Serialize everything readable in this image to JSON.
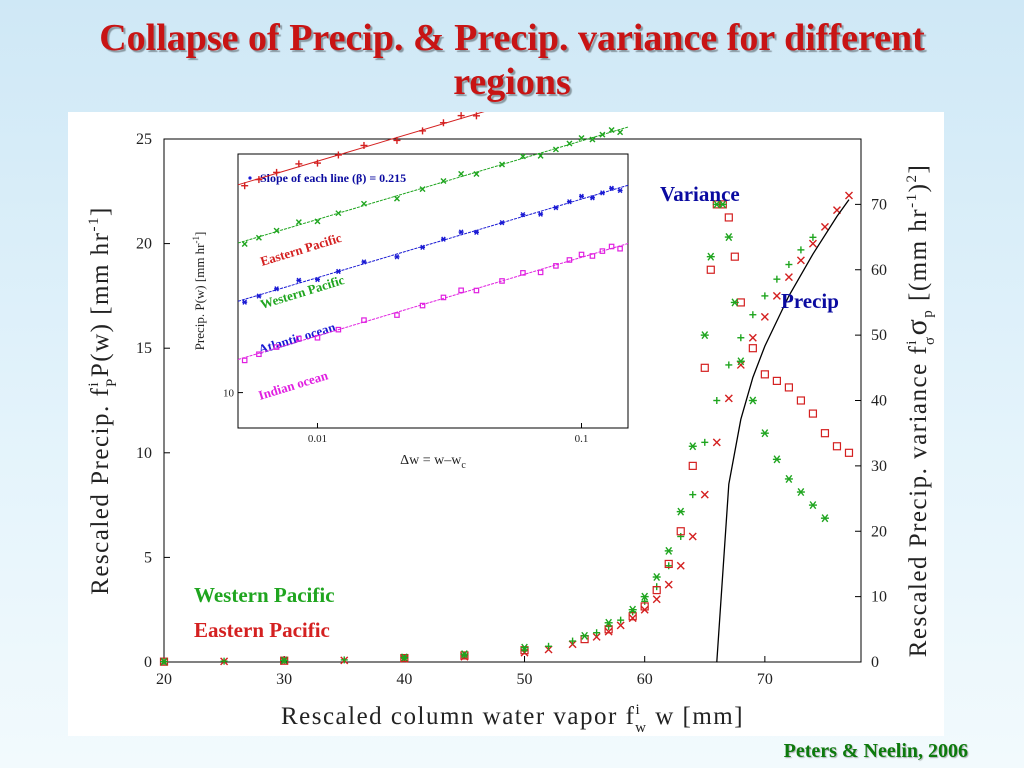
{
  "slide": {
    "title_line1": "Collapse of Precip. & Precip. variance for different",
    "title_line2": "regions",
    "credit": "Peters & Neelin, 2006"
  },
  "chart_data": [
    {
      "type": "scatter",
      "id": "main",
      "xlabel": "Rescaled column water vapor f",
      "xlabel_sup": "i",
      "xlabel_sub": "w",
      "xlabel_tail": " w [mm]",
      "ylabel_left": "Rescaled Precip. f",
      "ylabel_left_sup": "i",
      "ylabel_left_sub": "P",
      "ylabel_left_tail": "P(w) [mm hr",
      "ylabel_left_exp": "-1",
      "ylabel_left_end": "]",
      "ylabel_right": "Rescaled Precip. variance f",
      "ylabel_right_sup": "i",
      "ylabel_right_sub": "σ",
      "ylabel_right_sigma": "σ",
      "ylabel_right_sigma_sub": "p",
      "ylabel_right_tail": " [(mm hr",
      "ylabel_right_exp": "-1",
      "ylabel_right_mid": ")",
      "ylabel_right_exp2": "2",
      "ylabel_right_end": "]",
      "xlim": [
        20,
        78
      ],
      "ylim_left": [
        0,
        25
      ],
      "ylim_right": [
        0,
        80
      ],
      "x_ticks": [
        "20",
        "30",
        "40",
        "50",
        "60",
        "70"
      ],
      "y_ticks_left": [
        "0",
        "5",
        "10",
        "15",
        "20",
        "25"
      ],
      "y_ticks_right": [
        "0",
        "10",
        "20",
        "30",
        "40",
        "50",
        "60",
        "70"
      ],
      "annotations": {
        "variance": "Variance",
        "precip": "Precip",
        "legend_western": "Western Pacific",
        "legend_eastern": "Eastern Pacific"
      },
      "colors": {
        "eastern": "#d42020",
        "western": "#1fa51f",
        "fit": "#000000",
        "annot": "#0a0aa0"
      },
      "precip_x": [
        20,
        25,
        30,
        35,
        40,
        45,
        50,
        52,
        54,
        56,
        57,
        58,
        59,
        60,
        61,
        62,
        63,
        64,
        65,
        66,
        67,
        68,
        69,
        70,
        71,
        72,
        73,
        74,
        75,
        76,
        77
      ],
      "precip_eastern": [
        0.02,
        0.03,
        0.05,
        0.08,
        0.15,
        0.25,
        0.45,
        0.6,
        0.85,
        1.2,
        1.45,
        1.75,
        2.1,
        2.5,
        3.0,
        3.7,
        4.6,
        6.0,
        8.0,
        10.5,
        12.6,
        14.2,
        15.5,
        16.5,
        17.5,
        18.4,
        19.2,
        20.0,
        20.8,
        21.6,
        22.3
      ],
      "precip_western": [
        0.02,
        0.04,
        0.06,
        0.1,
        0.18,
        0.3,
        0.55,
        0.75,
        1.0,
        1.4,
        1.7,
        2.0,
        2.4,
        2.9,
        3.6,
        4.6,
        6.0,
        8.0,
        10.5,
        12.5,
        14.2,
        15.5,
        16.6,
        17.5,
        18.3,
        19.0,
        19.7,
        20.3
      ],
      "variance_x": [
        20,
        30,
        40,
        45,
        50,
        55,
        57,
        59,
        60,
        61,
        62,
        63,
        64,
        65,
        65.5,
        66,
        66.5,
        67,
        67.5,
        68,
        69,
        70,
        71,
        72,
        73,
        74,
        75,
        76,
        77
      ],
      "variance_eastern": [
        0.05,
        0.2,
        0.6,
        1.0,
        1.8,
        3.5,
        5.0,
        7.0,
        8.5,
        11.0,
        15.0,
        20.0,
        30.0,
        45.0,
        60.0,
        70.0,
        70.0,
        68.0,
        62.0,
        55.0,
        48.0,
        44.0,
        43.0,
        42.0,
        40.0,
        38.0,
        35.0,
        33.0,
        32.0
      ],
      "variance_western": [
        0.05,
        0.25,
        0.7,
        1.2,
        2.2,
        4.0,
        6.0,
        8.0,
        10.0,
        13.0,
        17.0,
        23.0,
        33.0,
        50.0,
        62.0,
        70.0,
        70.0,
        65.0,
        55.0,
        46.0,
        40.0,
        35.0,
        31.0,
        28.0,
        26.0,
        24.0,
        22.0
      ],
      "fit_line": {
        "x": [
          66,
          67,
          68,
          69,
          70,
          72,
          74,
          76,
          77
        ],
        "y": [
          0,
          8.5,
          11.6,
          13.6,
          15.1,
          17.5,
          19.5,
          21.3,
          22.1
        ]
      }
    },
    {
      "type": "scatter",
      "id": "inset",
      "xscale": "log",
      "yscale": "log",
      "xlabel": "Δw = w–w",
      "xlabel_sub": "c",
      "ylabel": "Precip. P(w) [mm hr",
      "ylabel_exp": "-1",
      "ylabel_end": "]",
      "x_ticks": [
        "0.01",
        "0.1"
      ],
      "y_ticks": [
        "10"
      ],
      "legend_text": "Slope of each line (β) = 0.215",
      "beta": 0.215,
      "series": [
        {
          "name": "Eastern Pacific",
          "color": "#d42020",
          "marker": "+",
          "offset": 3.55
        },
        {
          "name": "Western Pacific",
          "color": "#1fa51f",
          "marker": "x",
          "offset": 2.7
        },
        {
          "name": "Atlantic ocean",
          "color": "#1a1ad4",
          "marker": "*",
          "offset": 1.85
        },
        {
          "name": "Indian ocean",
          "color": "#e020e0",
          "marker": "square",
          "offset": 1.0
        }
      ]
    }
  ]
}
